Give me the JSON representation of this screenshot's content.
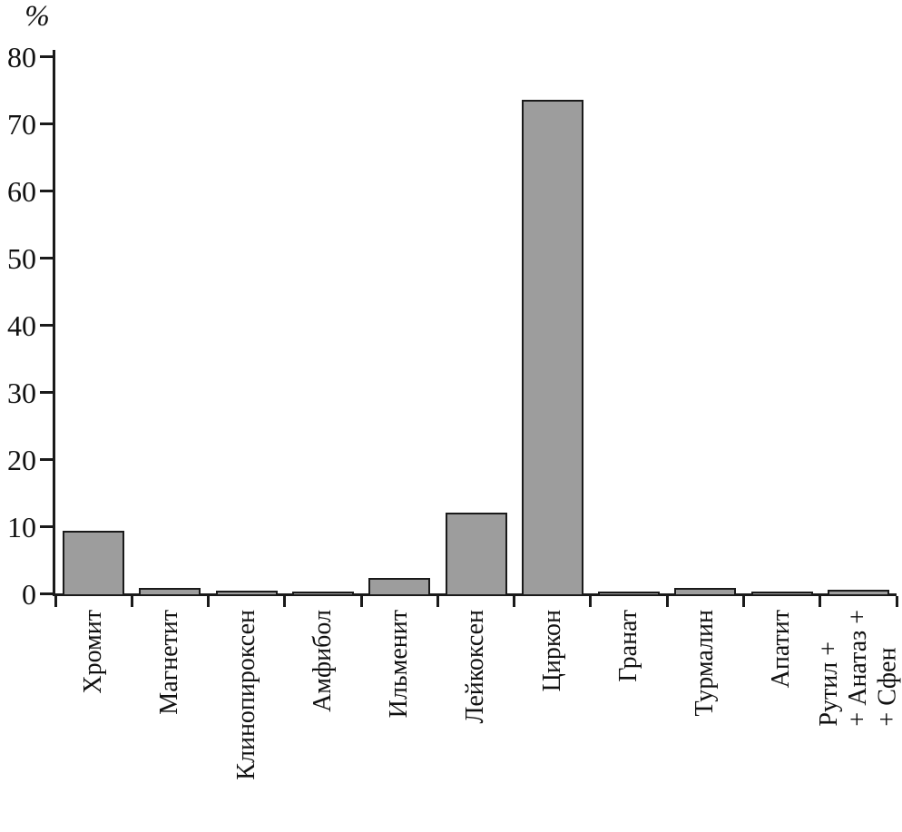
{
  "chart_data": {
    "type": "bar",
    "title": "",
    "xlabel": "",
    "ylabel": "%",
    "ylim": [
      0,
      80
    ],
    "yticks": [
      0,
      10,
      20,
      30,
      40,
      50,
      60,
      70,
      80
    ],
    "grid": false,
    "legend": "none",
    "bar_color": "#9d9d9d",
    "bar_border_color": "#1a1a1a",
    "axis_color": "#1a1a1a",
    "categories": [
      "Хромит",
      "Магнетит",
      "Клинопироксен",
      "Амфибол",
      "Ильменит",
      "Лейкоксен",
      "Циркон",
      "Гранат",
      "Турмалин",
      "Апатит",
      "Рутил +\n+ Анатаз +\n+ Сфен"
    ],
    "values": [
      9.3,
      0.8,
      0.4,
      0.3,
      2.3,
      12.0,
      73.5,
      0.2,
      0.8,
      0.3,
      0.5
    ]
  }
}
